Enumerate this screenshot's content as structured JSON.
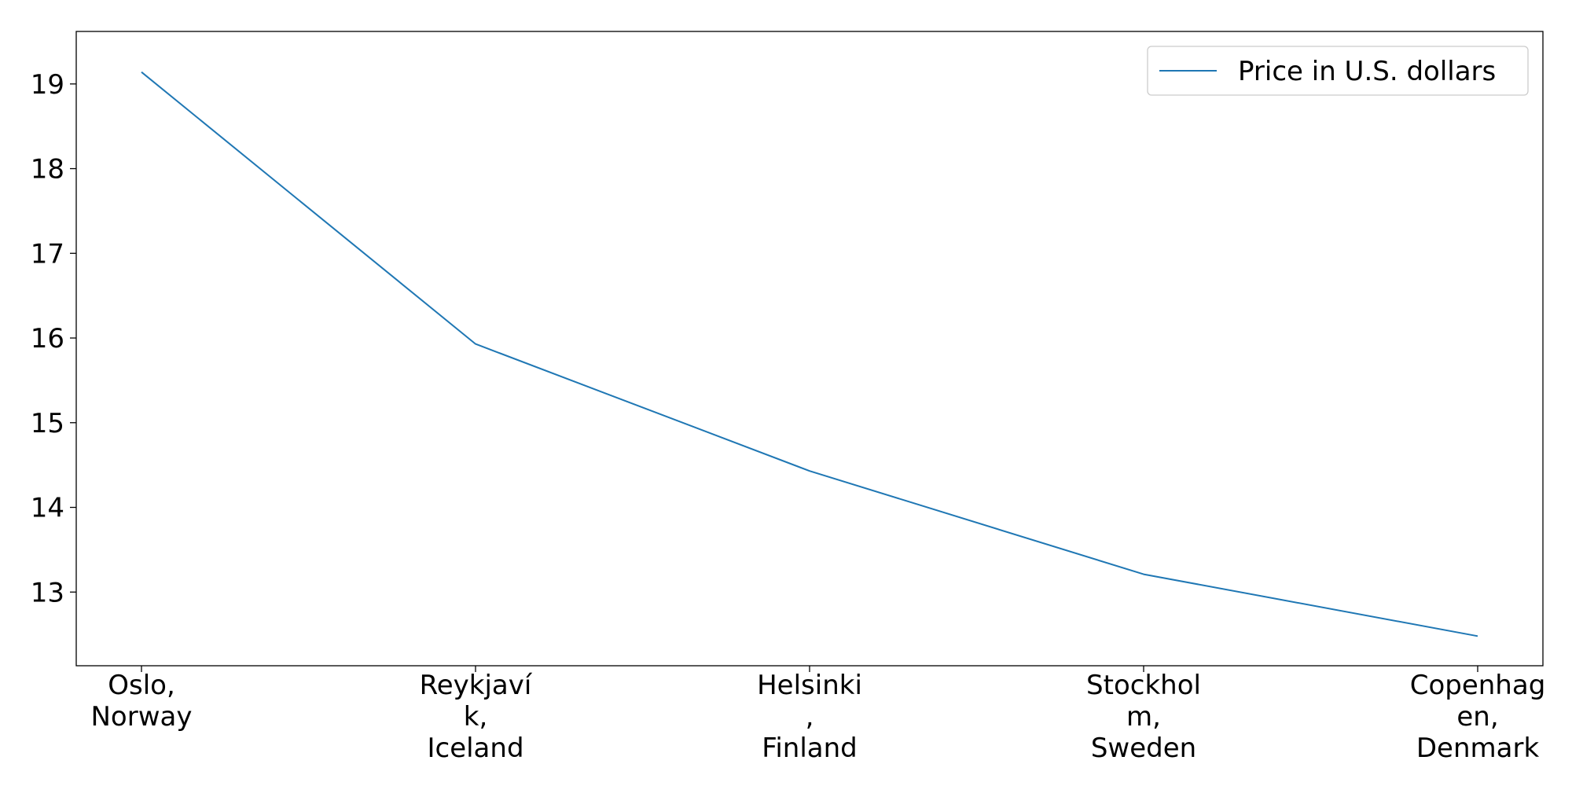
{
  "chart_data": {
    "type": "line",
    "categories": [
      [
        "Oslo,",
        "Norway"
      ],
      [
        "Reykjaví",
        "k,",
        "Iceland"
      ],
      [
        "Helsinki",
        ",",
        "Finland"
      ],
      [
        "Stockhol",
        "m,",
        "Sweden"
      ],
      [
        "Copenhag",
        "en,",
        "Denmark"
      ]
    ],
    "series": [
      {
        "name": "Price in U.S. dollars",
        "values": [
          19.14,
          15.93,
          14.43,
          13.21,
          12.48
        ],
        "color": "#1f77b4"
      }
    ],
    "ylim": [
      12.13,
      19.62
    ],
    "yticks": [
      13,
      14,
      15,
      16,
      17,
      18,
      19
    ],
    "grid": false,
    "legend_position": "top-right"
  }
}
